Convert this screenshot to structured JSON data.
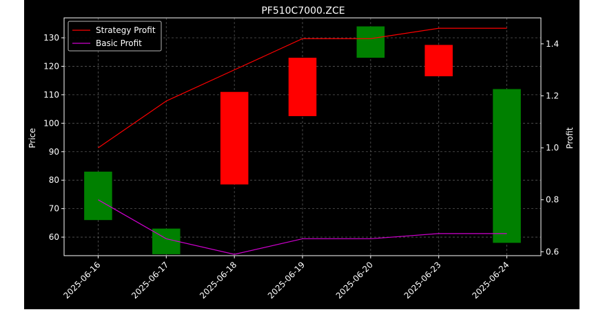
{
  "chart_data": {
    "type": "candlestick-with-lines",
    "title": "PF510C7000.ZCE",
    "xlabel": "",
    "ylabel_left": "Price",
    "ylabel_right": "Profit",
    "categories": [
      "2025-06-16",
      "2025-06-17",
      "2025-06-18",
      "2025-06-19",
      "2025-06-20",
      "2025-06-23",
      "2025-06-24"
    ],
    "candles": [
      {
        "date": "2025-06-16",
        "open": 66,
        "close": 83,
        "color": "green"
      },
      {
        "date": "2025-06-17",
        "open": 54,
        "close": 63,
        "color": "green"
      },
      {
        "date": "2025-06-18",
        "open": 111,
        "close": 78.5,
        "color": "red"
      },
      {
        "date": "2025-06-19",
        "open": 123,
        "close": 102.5,
        "color": "red"
      },
      {
        "date": "2025-06-20",
        "open": 123,
        "close": 134,
        "color": "green"
      },
      {
        "date": "2025-06-23",
        "open": 127.5,
        "close": 116.5,
        "color": "red"
      },
      {
        "date": "2025-06-24",
        "open": 58,
        "close": 112,
        "color": "green"
      }
    ],
    "series": [
      {
        "name": "Strategy Profit",
        "axis": "right",
        "color": "#ff0000",
        "values": [
          1.0,
          1.18,
          1.3,
          1.42,
          1.42,
          1.46,
          1.46
        ]
      },
      {
        "name": "Basic Profit",
        "axis": "right",
        "color": "#d000d0",
        "values": [
          0.8,
          0.65,
          0.59,
          0.65,
          0.65,
          0.67,
          0.67
        ]
      }
    ],
    "ylim_left": [
      53.5,
      137
    ],
    "ylim_right": [
      0.585,
      1.5
    ],
    "yticks_left": [
      60,
      70,
      80,
      90,
      100,
      110,
      120,
      130
    ],
    "yticks_right": [
      0.6,
      0.8,
      1.0,
      1.2,
      1.4
    ],
    "grid": true,
    "legend_placement": "top-left",
    "colors": {
      "background": "#000000",
      "up": "#008000",
      "down": "#ff0000",
      "text": "#ffffff",
      "grid": "#7f7f7f"
    }
  }
}
